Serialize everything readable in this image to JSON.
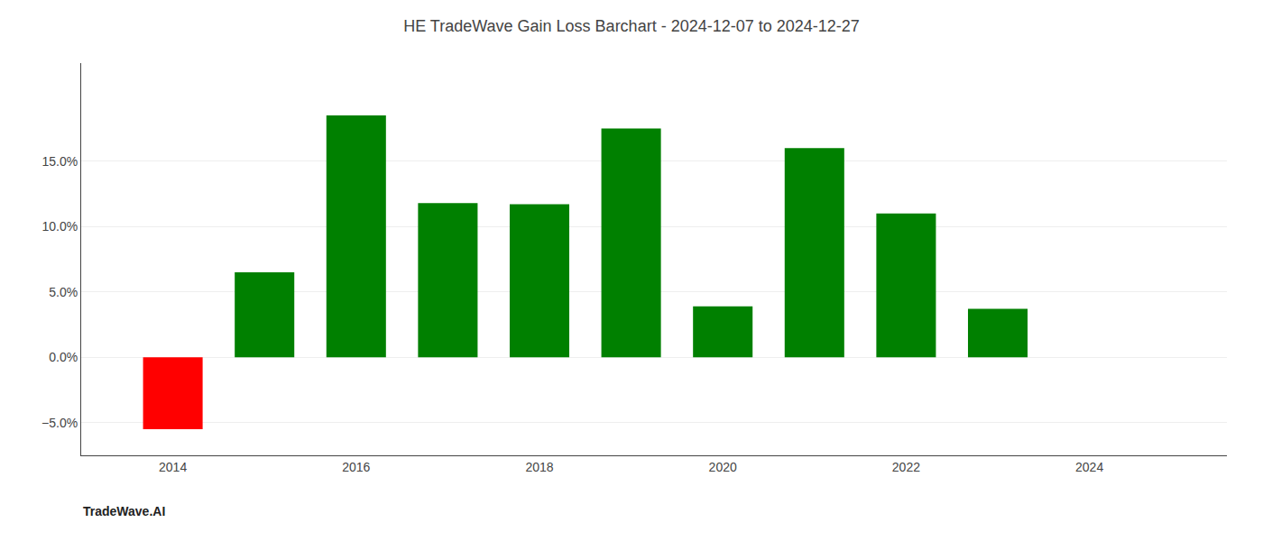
{
  "chart_data": {
    "type": "bar",
    "title": "HE TradeWave Gain Loss Barchart - 2024-12-07 to 2024-12-27",
    "annotations": [
      "TradeWave.AI"
    ],
    "x": [
      2014,
      2015,
      2016,
      2017,
      2018,
      2019,
      2020,
      2021,
      2022,
      2023
    ],
    "values": [
      -0.055,
      0.065,
      0.185,
      0.118,
      0.117,
      0.175,
      0.039,
      0.16,
      0.11,
      0.037
    ],
    "colors": [
      "#ff0000",
      "#008000",
      "#008000",
      "#008000",
      "#008000",
      "#008000",
      "#008000",
      "#008000",
      "#008000",
      "#008000"
    ],
    "xlim": [
      2013.0,
      2025.5
    ],
    "xticks": [
      2014,
      2016,
      2018,
      2020,
      2022,
      2024
    ],
    "ylim": [
      -0.075,
      0.225
    ],
    "yticks": [
      {
        "value": -0.05,
        "label": "−5.0%"
      },
      {
        "value": 0.0,
        "label": "0.0%"
      },
      {
        "value": 0.05,
        "label": "5.0%"
      },
      {
        "value": 0.1,
        "label": "10.0%"
      },
      {
        "value": 0.15,
        "label": "15.0%"
      }
    ],
    "grid": true
  }
}
